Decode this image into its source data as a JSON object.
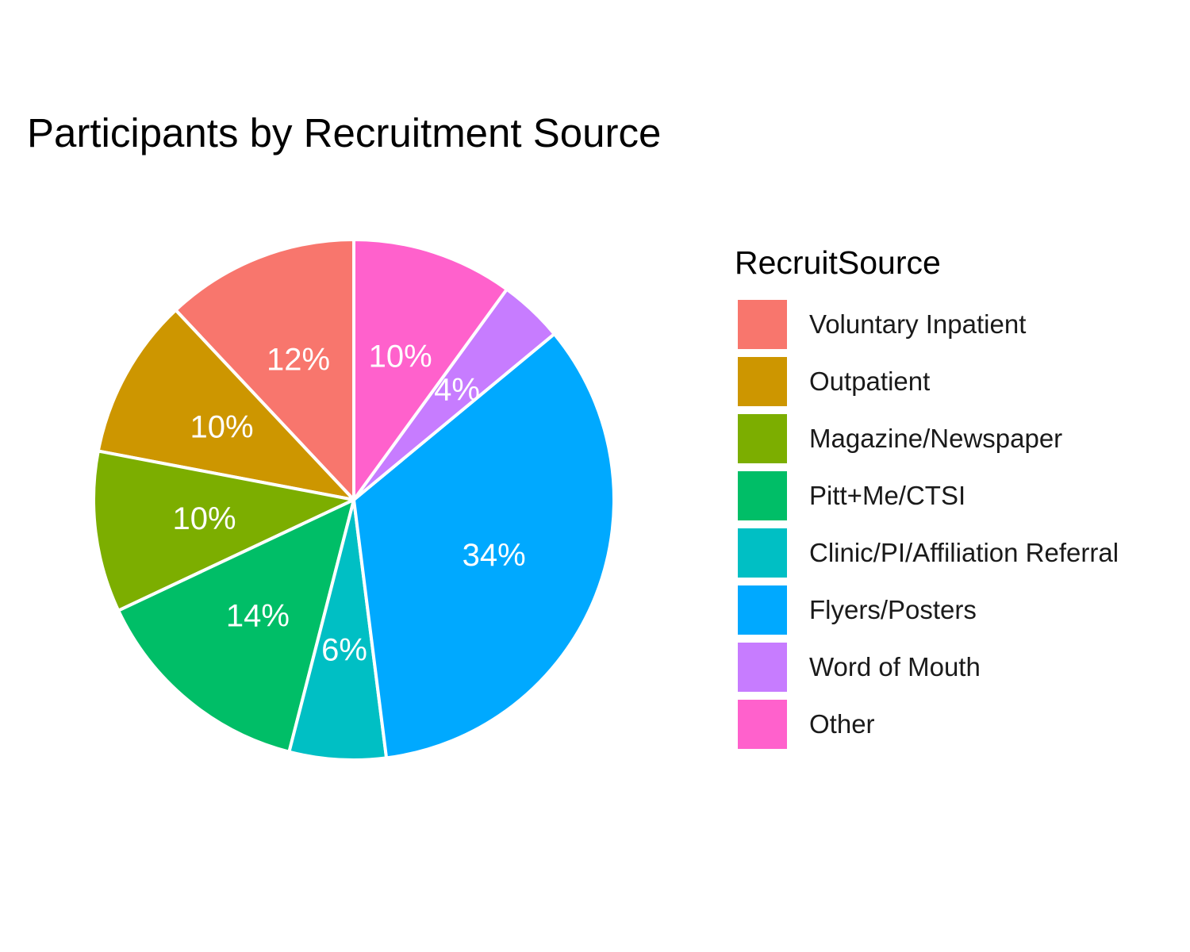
{
  "chart_data": {
    "type": "pie",
    "title": "Participants by Recruitment Source",
    "legend_title": "RecruitSource",
    "legend_position": "right",
    "slice_border_color": "#ffffff",
    "label_color": "#ffffff",
    "slices": [
      {
        "name": "Voluntary Inpatient",
        "value": 12,
        "label": "12%",
        "color": "#F8766D"
      },
      {
        "name": "Outpatient",
        "value": 10,
        "label": "10%",
        "color": "#CD9600"
      },
      {
        "name": "Magazine/Newspaper",
        "value": 10,
        "label": "10%",
        "color": "#7CAE00"
      },
      {
        "name": "Pitt+Me/CTSI",
        "value": 14,
        "label": "14%",
        "color": "#00BE67"
      },
      {
        "name": "Clinic/PI/Affiliation Referral",
        "value": 6,
        "label": "6%",
        "color": "#00BFC4"
      },
      {
        "name": "Flyers/Posters",
        "value": 34,
        "label": "34%",
        "color": "#00A9FF"
      },
      {
        "name": "Word of Mouth",
        "value": 4,
        "label": "4%",
        "color": "#C77CFF"
      },
      {
        "name": "Other",
        "value": 10,
        "label": "10%",
        "color": "#FF61CC"
      }
    ]
  }
}
